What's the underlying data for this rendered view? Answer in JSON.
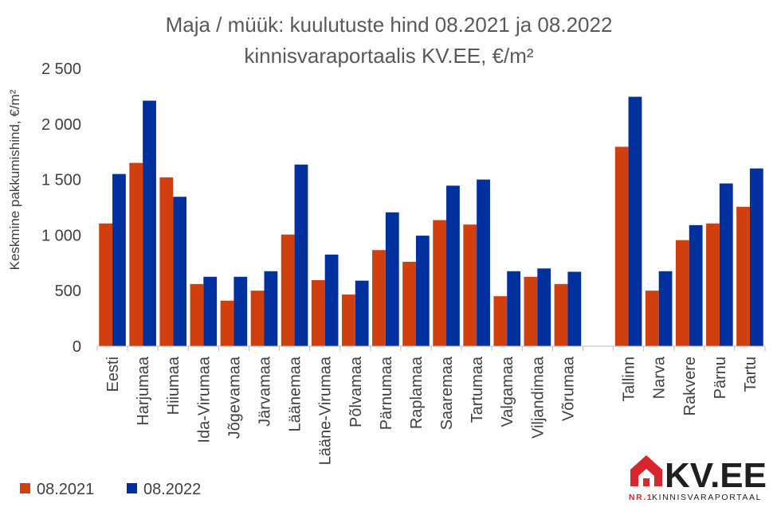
{
  "chart_data": {
    "type": "bar",
    "title_line1": "Maja / müük: kuulutuste hind 08.2021 ja 08.2022",
    "title_line2": "kinnisvaraportaalis KV.EE, €/m²",
    "ylabel": "Keskmine pakkumishind, €/m²",
    "ylim": [
      0,
      2500
    ],
    "yticks": [
      0,
      500,
      1000,
      1500,
      2000,
      2500
    ],
    "ytick_labels": [
      "0",
      "500",
      "1 000",
      "1 500",
      "2 000",
      "2 500"
    ],
    "grid": false,
    "legend_position": "bottom-left",
    "categories": [
      "Eesti",
      "Harjumaa",
      "Hiiumaa",
      "Ida-Virumaa",
      "Jõgevamaa",
      "Järvamaa",
      "Läänemaa",
      "Lääne-Virumaa",
      "Põlvamaa",
      "Pärnumaa",
      "Raplamaa",
      "Saaremaa",
      "Tartumaa",
      "Valgamaa",
      "Viljandimaa",
      "Võrumaa",
      "",
      "Tallinn",
      "Narva",
      "Rakvere",
      "Pärnu",
      "Tartu"
    ],
    "series": [
      {
        "name": "08.2021",
        "color": "#d13f0e",
        "values": [
          1105,
          1650,
          1520,
          560,
          410,
          500,
          1005,
          595,
          465,
          865,
          760,
          1135,
          1095,
          450,
          625,
          560,
          null,
          1795,
          500,
          955,
          1105,
          1255
        ]
      },
      {
        "name": "08.2022",
        "color": "#00309e",
        "values": [
          1550,
          2210,
          1345,
          625,
          625,
          675,
          1635,
          825,
          590,
          1205,
          995,
          1445,
          1500,
          675,
          700,
          670,
          null,
          2245,
          675,
          1090,
          1465,
          1600
        ]
      }
    ]
  },
  "logo": {
    "brand": "KV.EE",
    "tagline_prefix": "NR.1",
    "tagline": "KINNISVARAPORTAAL",
    "colors": {
      "red": "#d7262e",
      "dark": "#1f1f1f"
    }
  }
}
